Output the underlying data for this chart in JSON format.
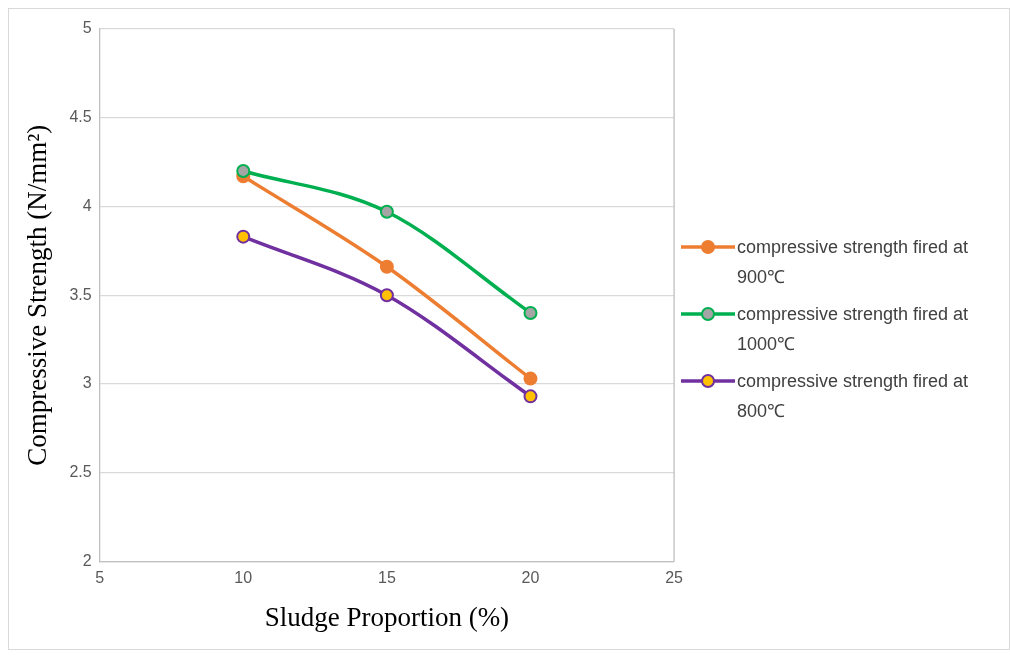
{
  "chart_data": {
    "type": "line",
    "xlabel": "Sludge Proportion (%)",
    "ylabel": "Compressive Strength (N/mm²)",
    "x": [
      10,
      15,
      20
    ],
    "series": [
      {
        "name": "compressive strength fired at 900℃",
        "color": "#ed7d31",
        "colors": [
          "#ed7d31",
          "#ed7d31",
          "#ed7d31"
        ],
        "values": [
          4.17,
          3.66,
          3.03
        ]
      },
      {
        "name": "compressive strength fired at 1000℃",
        "color": "#00b050",
        "colors": [
          "#a5a5a5",
          "#a5a5a5",
          "#a5a5a5"
        ],
        "values": [
          4.2,
          3.97,
          3.4
        ]
      },
      {
        "name": "compressive strength fired at 800℃",
        "color": "#7030a0",
        "colors": [
          "#ffc000",
          "#ffc000",
          "#ffc000"
        ],
        "values": [
          3.83,
          3.5,
          2.93
        ]
      }
    ],
    "xlim": [
      5,
      25
    ],
    "xticks": [
      5,
      10,
      15,
      20,
      25
    ],
    "ylim": [
      2,
      5
    ],
    "yticks": [
      2,
      2.5,
      3,
      3.5,
      4,
      4.5,
      5
    ],
    "grid": "y",
    "legend": "right",
    "marker": "circle",
    "line_style": "solid"
  }
}
